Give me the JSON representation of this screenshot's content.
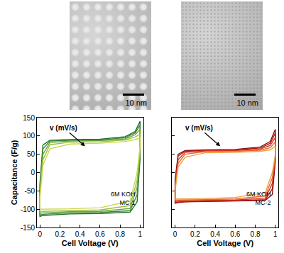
{
  "images": [
    {
      "scale_bar": "10 nm"
    },
    {
      "scale_bar": "10 nm"
    }
  ],
  "chart_data": [
    {
      "type": "line",
      "xlabel": "Cell Voltage (V)",
      "ylabel": "Capacitance (F/g)",
      "arrow_label": "v (mV/s)",
      "annotations": [
        "6M KOH",
        "MC-1"
      ],
      "xlim": [
        -0.03,
        1.03
      ],
      "xticks": [
        0,
        0.2,
        0.4,
        0.6,
        0.8,
        1
      ],
      "ylim": [
        -150,
        150
      ],
      "yticks": [
        -150,
        -100,
        -50,
        0,
        50,
        100,
        150
      ],
      "x": [
        0,
        0.03,
        0.1,
        0.3,
        0.6,
        0.85,
        0.95,
        1,
        1,
        0.97,
        0.9,
        0.6,
        0.3,
        0.1,
        0.03,
        0,
        0
      ],
      "series": [
        {
          "color": "#1f6e2e",
          "values": [
            -30,
            75,
            88,
            90,
            91,
            98,
            112,
            140,
            40,
            -80,
            -108,
            -112,
            -113,
            -115,
            -117,
            -120,
            -30
          ]
        },
        {
          "color": "#3d8a2e",
          "values": [
            -40,
            65,
            86,
            88,
            89,
            95,
            108,
            130,
            50,
            -60,
            -104,
            -109,
            -110,
            -112,
            -114,
            -116,
            -40
          ]
        },
        {
          "color": "#6aa33a",
          "values": [
            -50,
            50,
            82,
            86,
            87,
            92,
            103,
            118,
            60,
            -40,
            -98,
            -106,
            -107,
            -109,
            -110,
            -112,
            -50
          ]
        },
        {
          "color": "#9dbf45",
          "values": [
            -60,
            35,
            76,
            83,
            84,
            89,
            97,
            105,
            70,
            -20,
            -90,
            -102,
            -104,
            -105,
            -106,
            -107,
            -60
          ]
        },
        {
          "color": "#c9d84e",
          "values": [
            -70,
            20,
            65,
            78,
            80,
            85,
            90,
            95,
            75,
            0,
            -78,
            -96,
            -99,
            -100,
            -100,
            -100,
            -70
          ]
        }
      ]
    },
    {
      "type": "line",
      "xlabel": "Cell Voltage (V)",
      "tick_labels": "x",
      "arrow_label": "v (mV/s)",
      "annotations": [
        "6M KOH",
        "MC-2"
      ],
      "xlim": [
        -0.03,
        1.03
      ],
      "xticks": [
        0,
        0.2,
        0.4,
        0.6,
        0.8,
        1
      ],
      "ylim": [
        -150,
        150
      ],
      "yticks": [
        -150,
        -100,
        -50,
        0,
        50,
        100,
        150
      ],
      "x": [
        0,
        0.03,
        0.1,
        0.3,
        0.6,
        0.85,
        0.95,
        1,
        1,
        0.97,
        0.9,
        0.6,
        0.3,
        0.1,
        0.03,
        0,
        0
      ],
      "series": [
        {
          "color": "#7a1010",
          "values": [
            -20,
            50,
            60,
            62,
            63,
            70,
            85,
            118,
            30,
            -60,
            -76,
            -78,
            -79,
            -80,
            -82,
            -84,
            -20
          ]
        },
        {
          "color": "#b01818",
          "values": [
            -30,
            45,
            58,
            61,
            62,
            67,
            80,
            108,
            35,
            -45,
            -74,
            -77,
            -78,
            -79,
            -80,
            -82,
            -30
          ]
        },
        {
          "color": "#d83020",
          "values": [
            -40,
            35,
            55,
            59,
            60,
            64,
            74,
            96,
            40,
            -30,
            -70,
            -75,
            -76,
            -77,
            -78,
            -79,
            -40
          ]
        },
        {
          "color": "#e86a30",
          "values": [
            -45,
            25,
            50,
            57,
            58,
            61,
            68,
            84,
            45,
            -15,
            -64,
            -72,
            -74,
            -75,
            -75,
            -75,
            -45
          ]
        },
        {
          "color": "#f0a040",
          "values": [
            -50,
            15,
            42,
            54,
            55,
            58,
            62,
            72,
            48,
            0,
            -55,
            -68,
            -71,
            -72,
            -72,
            -72,
            -50
          ]
        }
      ]
    }
  ]
}
